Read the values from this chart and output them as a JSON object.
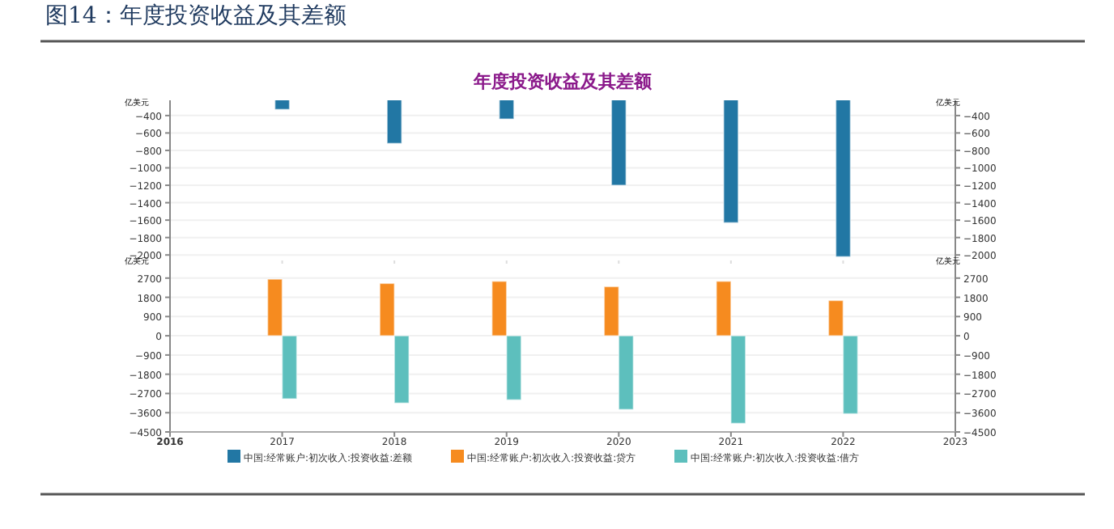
{
  "chart_data": [
    {
      "type": "bar",
      "title": "年度投资收益及其差额",
      "annotations": [
        "图14：年度投资收益及其差额"
      ],
      "ylabel": "亿美元",
      "y2label": "亿美元",
      "xlim": [
        2016,
        2023
      ],
      "xticks": [
        2016,
        2017,
        2018,
        2019,
        2020,
        2021,
        2022,
        2023
      ],
      "tick_labels": "y",
      "ylim": [
        -2100,
        -225
      ],
      "yticks": [
        -400,
        -600,
        -800,
        -1000,
        -1200,
        -1400,
        -1600,
        -1800,
        -2000
      ],
      "y2lim": [
        -2100,
        -225
      ],
      "y2ticks": [
        -400,
        -600,
        -800,
        -1000,
        -1200,
        -1400,
        -1600,
        -1800,
        -2000
      ],
      "grid": "y",
      "legend": "bottom",
      "series": [
        {
          "name": "中国:经常账户:初次收入:投资收益:差额",
          "color": "#2277a4",
          "x": [
            2017,
            2018,
            2019,
            2020,
            2021,
            2022
          ],
          "values": [
            -330,
            -720,
            -440,
            -1200,
            -1630,
            -2020
          ]
        }
      ]
    },
    {
      "type": "bar",
      "ylabel": "亿美元",
      "y2label": "亿美元",
      "xlim": [
        2016,
        2023
      ],
      "xticks": [
        2016,
        2017,
        2018,
        2019,
        2020,
        2021,
        2022,
        2023
      ],
      "ylim": [
        -4500,
        3600
      ],
      "yticks": [
        -4500,
        -3600,
        -2700,
        -1800,
        -900,
        0,
        900,
        1800,
        2700
      ],
      "y2lim": [
        -4500,
        3600
      ],
      "y2ticks": [
        -4500,
        -3600,
        -2700,
        -1800,
        -900,
        0,
        900,
        1800,
        2700
      ],
      "grid": "y",
      "legend": "bottom",
      "series": [
        {
          "name": "中国:经常账户:初次收入:投资收益:贷方",
          "color": "#f68b1f",
          "x": [
            2017,
            2018,
            2019,
            2020,
            2021,
            2022
          ],
          "values": [
            2650,
            2450,
            2550,
            2300,
            2550,
            1650
          ]
        },
        {
          "name": "中国:经常账户:初次收入:投资收益:借方",
          "color": "#5dbfbd",
          "x": [
            2017,
            2018,
            2019,
            2020,
            2021,
            2022
          ],
          "values": [
            -2950,
            -3150,
            -3000,
            -3450,
            -4100,
            -3650
          ]
        }
      ]
    }
  ]
}
